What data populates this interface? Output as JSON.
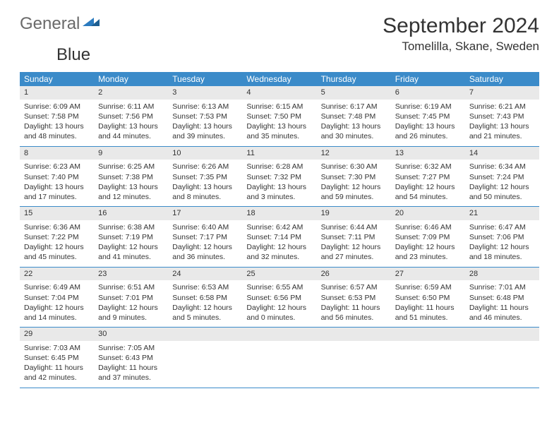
{
  "branding": {
    "text1": "General",
    "text2": "Blue",
    "text1_color": "#6a6a6a",
    "text2_color": "#2b7bbf",
    "mark_color": "#2b7bbf"
  },
  "title": "September 2024",
  "location": "Tomelilla, Skane, Sweden",
  "dow_header_bg": "#3b8bc9",
  "dow_header_text_color": "#ffffff",
  "daynum_bg": "#e9e9e9",
  "row_border_color": "#3b8bc9",
  "text_color": "#333333",
  "body_bg": "#ffffff",
  "fontsize_title": 30,
  "fontsize_location": 17,
  "fontsize_dow": 12,
  "fontsize_body": 10.5,
  "days_of_week": [
    "Sunday",
    "Monday",
    "Tuesday",
    "Wednesday",
    "Thursday",
    "Friday",
    "Saturday"
  ],
  "weeks": [
    [
      {
        "num": "1",
        "sunrise": "Sunrise: 6:09 AM",
        "sunset": "Sunset: 7:58 PM",
        "daylight": "Daylight: 13 hours and 48 minutes."
      },
      {
        "num": "2",
        "sunrise": "Sunrise: 6:11 AM",
        "sunset": "Sunset: 7:56 PM",
        "daylight": "Daylight: 13 hours and 44 minutes."
      },
      {
        "num": "3",
        "sunrise": "Sunrise: 6:13 AM",
        "sunset": "Sunset: 7:53 PM",
        "daylight": "Daylight: 13 hours and 39 minutes."
      },
      {
        "num": "4",
        "sunrise": "Sunrise: 6:15 AM",
        "sunset": "Sunset: 7:50 PM",
        "daylight": "Daylight: 13 hours and 35 minutes."
      },
      {
        "num": "5",
        "sunrise": "Sunrise: 6:17 AM",
        "sunset": "Sunset: 7:48 PM",
        "daylight": "Daylight: 13 hours and 30 minutes."
      },
      {
        "num": "6",
        "sunrise": "Sunrise: 6:19 AM",
        "sunset": "Sunset: 7:45 PM",
        "daylight": "Daylight: 13 hours and 26 minutes."
      },
      {
        "num": "7",
        "sunrise": "Sunrise: 6:21 AM",
        "sunset": "Sunset: 7:43 PM",
        "daylight": "Daylight: 13 hours and 21 minutes."
      }
    ],
    [
      {
        "num": "8",
        "sunrise": "Sunrise: 6:23 AM",
        "sunset": "Sunset: 7:40 PM",
        "daylight": "Daylight: 13 hours and 17 minutes."
      },
      {
        "num": "9",
        "sunrise": "Sunrise: 6:25 AM",
        "sunset": "Sunset: 7:38 PM",
        "daylight": "Daylight: 13 hours and 12 minutes."
      },
      {
        "num": "10",
        "sunrise": "Sunrise: 6:26 AM",
        "sunset": "Sunset: 7:35 PM",
        "daylight": "Daylight: 13 hours and 8 minutes."
      },
      {
        "num": "11",
        "sunrise": "Sunrise: 6:28 AM",
        "sunset": "Sunset: 7:32 PM",
        "daylight": "Daylight: 13 hours and 3 minutes."
      },
      {
        "num": "12",
        "sunrise": "Sunrise: 6:30 AM",
        "sunset": "Sunset: 7:30 PM",
        "daylight": "Daylight: 12 hours and 59 minutes."
      },
      {
        "num": "13",
        "sunrise": "Sunrise: 6:32 AM",
        "sunset": "Sunset: 7:27 PM",
        "daylight": "Daylight: 12 hours and 54 minutes."
      },
      {
        "num": "14",
        "sunrise": "Sunrise: 6:34 AM",
        "sunset": "Sunset: 7:24 PM",
        "daylight": "Daylight: 12 hours and 50 minutes."
      }
    ],
    [
      {
        "num": "15",
        "sunrise": "Sunrise: 6:36 AM",
        "sunset": "Sunset: 7:22 PM",
        "daylight": "Daylight: 12 hours and 45 minutes."
      },
      {
        "num": "16",
        "sunrise": "Sunrise: 6:38 AM",
        "sunset": "Sunset: 7:19 PM",
        "daylight": "Daylight: 12 hours and 41 minutes."
      },
      {
        "num": "17",
        "sunrise": "Sunrise: 6:40 AM",
        "sunset": "Sunset: 7:17 PM",
        "daylight": "Daylight: 12 hours and 36 minutes."
      },
      {
        "num": "18",
        "sunrise": "Sunrise: 6:42 AM",
        "sunset": "Sunset: 7:14 PM",
        "daylight": "Daylight: 12 hours and 32 minutes."
      },
      {
        "num": "19",
        "sunrise": "Sunrise: 6:44 AM",
        "sunset": "Sunset: 7:11 PM",
        "daylight": "Daylight: 12 hours and 27 minutes."
      },
      {
        "num": "20",
        "sunrise": "Sunrise: 6:46 AM",
        "sunset": "Sunset: 7:09 PM",
        "daylight": "Daylight: 12 hours and 23 minutes."
      },
      {
        "num": "21",
        "sunrise": "Sunrise: 6:47 AM",
        "sunset": "Sunset: 7:06 PM",
        "daylight": "Daylight: 12 hours and 18 minutes."
      }
    ],
    [
      {
        "num": "22",
        "sunrise": "Sunrise: 6:49 AM",
        "sunset": "Sunset: 7:04 PM",
        "daylight": "Daylight: 12 hours and 14 minutes."
      },
      {
        "num": "23",
        "sunrise": "Sunrise: 6:51 AM",
        "sunset": "Sunset: 7:01 PM",
        "daylight": "Daylight: 12 hours and 9 minutes."
      },
      {
        "num": "24",
        "sunrise": "Sunrise: 6:53 AM",
        "sunset": "Sunset: 6:58 PM",
        "daylight": "Daylight: 12 hours and 5 minutes."
      },
      {
        "num": "25",
        "sunrise": "Sunrise: 6:55 AM",
        "sunset": "Sunset: 6:56 PM",
        "daylight": "Daylight: 12 hours and 0 minutes."
      },
      {
        "num": "26",
        "sunrise": "Sunrise: 6:57 AM",
        "sunset": "Sunset: 6:53 PM",
        "daylight": "Daylight: 11 hours and 56 minutes."
      },
      {
        "num": "27",
        "sunrise": "Sunrise: 6:59 AM",
        "sunset": "Sunset: 6:50 PM",
        "daylight": "Daylight: 11 hours and 51 minutes."
      },
      {
        "num": "28",
        "sunrise": "Sunrise: 7:01 AM",
        "sunset": "Sunset: 6:48 PM",
        "daylight": "Daylight: 11 hours and 46 minutes."
      }
    ],
    [
      {
        "num": "29",
        "sunrise": "Sunrise: 7:03 AM",
        "sunset": "Sunset: 6:45 PM",
        "daylight": "Daylight: 11 hours and 42 minutes."
      },
      {
        "num": "30",
        "sunrise": "Sunrise: 7:05 AM",
        "sunset": "Sunset: 6:43 PM",
        "daylight": "Daylight: 11 hours and 37 minutes."
      },
      {
        "empty": true
      },
      {
        "empty": true
      },
      {
        "empty": true
      },
      {
        "empty": true
      },
      {
        "empty": true
      }
    ]
  ]
}
